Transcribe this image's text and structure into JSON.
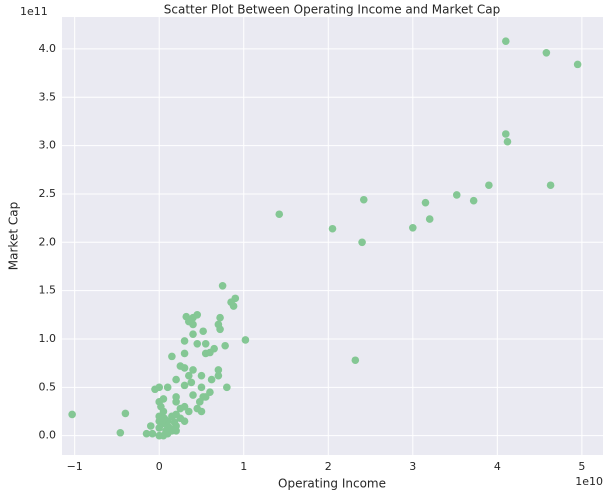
{
  "chart_data": {
    "type": "scatter",
    "title": "Scatter Plot Between Operating Income and Market Cap",
    "x_label": "Operating Income",
    "y_label": "Market Cap",
    "x_offset_label": "1e10",
    "y_offset_label": "1e11",
    "color": "#84c794",
    "grid": true,
    "xlim": [
      -1.15,
      5.25
    ],
    "ylim": [
      -0.2,
      4.33
    ],
    "xticks": [
      {
        "value": -1,
        "label": "−1"
      },
      0,
      1,
      2,
      3,
      4,
      5
    ],
    "yticks": [
      {
        "value": 0,
        "label": "0.0"
      },
      0.5,
      {
        "value": 1,
        "label": "1.0"
      },
      1.5,
      {
        "value": 2,
        "label": "2.0"
      },
      2.5,
      {
        "value": 3,
        "label": "3.0"
      },
      3.5,
      {
        "value": 4,
        "label": "4.0"
      }
    ],
    "x": [
      4.1,
      4.58,
      4.95,
      4.1,
      4.12,
      3.9,
      4.63,
      3.52,
      3.72,
      2.42,
      3.15,
      1.42,
      3.2,
      2.05,
      3.0,
      2.4,
      2.32,
      1.02,
      0.75,
      0.9,
      0.85,
      0.88,
      0.72,
      0.45,
      0.4,
      0.32,
      0.35,
      0.4,
      0.7,
      0.72,
      0.52,
      0.4,
      0.3,
      0.45,
      0.55,
      0.65,
      0.78,
      0.55,
      0.6,
      0.3,
      0.15,
      0.25,
      0.3,
      0.4,
      0.5,
      0.7,
      0.7,
      0.35,
      0.2,
      0.38,
      0.3,
      0.5,
      0.6,
      0.8,
      0.52,
      0.4,
      0.2,
      0.1,
      0.0,
      -0.05,
      0.45,
      0.5,
      0.3,
      0.2,
      0.05,
      0.0,
      -1.03,
      -0.4,
      -0.46,
      -0.15,
      -0.08,
      -0.1,
      0.0,
      0.05,
      0.1,
      0.15,
      0.2,
      0.1,
      0.0,
      0.05,
      0.15,
      0.2,
      0.25,
      0.1,
      0.0,
      0.03,
      0.08,
      0.12,
      0.3,
      0.2,
      0.02,
      0.0,
      0.06,
      0.25,
      0.18,
      0.35,
      0.55,
      0.62,
      0.48
    ],
    "values": [
      4.08,
      3.96,
      3.84,
      3.12,
      3.04,
      2.59,
      2.59,
      2.49,
      2.43,
      2.44,
      2.41,
      2.29,
      2.24,
      2.14,
      2.15,
      2.0,
      0.78,
      0.99,
      1.55,
      1.42,
      1.38,
      1.34,
      1.22,
      1.25,
      1.22,
      1.23,
      1.18,
      1.15,
      1.15,
      1.1,
      1.08,
      1.05,
      0.98,
      0.95,
      0.95,
      0.9,
      0.93,
      0.85,
      0.86,
      0.85,
      0.82,
      0.72,
      0.7,
      0.68,
      0.62,
      0.68,
      0.62,
      0.62,
      0.58,
      0.55,
      0.52,
      0.5,
      0.45,
      0.5,
      0.4,
      0.42,
      0.4,
      0.5,
      0.5,
      0.48,
      0.28,
      0.25,
      0.3,
      0.35,
      0.38,
      0.35,
      0.22,
      0.23,
      0.03,
      0.02,
      0.02,
      0.1,
      0.0,
      0.0,
      0.02,
      0.05,
      0.1,
      0.15,
      0.2,
      0.25,
      0.2,
      0.22,
      0.28,
      0.1,
      0.08,
      0.12,
      0.05,
      0.08,
      0.15,
      0.05,
      0.3,
      0.15,
      0.18,
      0.18,
      0.14,
      0.25,
      0.4,
      0.58,
      0.35
    ]
  }
}
